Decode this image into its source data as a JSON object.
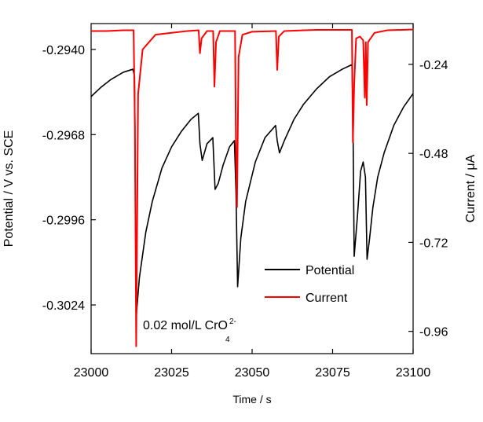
{
  "chart_data": {
    "type": "line",
    "xlabel": "Time / s",
    "ylabel_left": "Potential / V vs. SCE",
    "ylabel_right": "Current / μA",
    "xlim": [
      23000,
      23100
    ],
    "ylim_left": [
      -0.304,
      -0.29315
    ],
    "ylim_right": [
      -1.02,
      -0.13
    ],
    "x_ticks": [
      23000,
      23025,
      23050,
      23075,
      23100
    ],
    "x_tick_labels": [
      "23000",
      "23025",
      "23050",
      "23075",
      "23100"
    ],
    "y_left_ticks": [
      -0.294,
      -0.2968,
      -0.2996,
      -0.3024
    ],
    "y_left_tick_labels": [
      "-0.2940",
      "-0.2968",
      "-0.2996",
      "-0.3024"
    ],
    "y_right_ticks": [
      -0.24,
      -0.48,
      -0.72,
      -0.96
    ],
    "y_right_tick_labels": [
      "-0.24",
      "-0.48",
      "-0.72",
      "-0.96"
    ],
    "legend": {
      "placement": "bottom-right",
      "entries": [
        "Potential",
        "Current"
      ]
    },
    "annotation": {
      "text": "0.02 mol/L CrO",
      "superscript": "2-",
      "subscript": "4"
    },
    "series": [
      {
        "name": "Potential",
        "axis": "left",
        "color": "#000000",
        "points": [
          [
            23000,
            -0.29555
          ],
          [
            23003,
            -0.29525
          ],
          [
            23006,
            -0.295
          ],
          [
            23010,
            -0.29475
          ],
          [
            23013,
            -0.29465
          ],
          [
            23013.5,
            -0.2949
          ],
          [
            23014,
            -0.3028
          ],
          [
            23015,
            -0.3015
          ],
          [
            23017,
            -0.3
          ],
          [
            23019,
            -0.299
          ],
          [
            23022,
            -0.2979
          ],
          [
            23025,
            -0.2972
          ],
          [
            23028,
            -0.2967
          ],
          [
            23031,
            -0.2963
          ],
          [
            23033.3,
            -0.2961
          ],
          [
            23033.8,
            -0.2971
          ],
          [
            23034.5,
            -0.29765
          ],
          [
            23036,
            -0.2971
          ],
          [
            23037.8,
            -0.2969
          ],
          [
            23038.5,
            -0.2986
          ],
          [
            23039.5,
            -0.2984
          ],
          [
            23041,
            -0.2978
          ],
          [
            23043,
            -0.2972
          ],
          [
            23044.5,
            -0.297
          ],
          [
            23045,
            -0.2987
          ],
          [
            23045.5,
            -0.3018
          ],
          [
            23046.5,
            -0.3002
          ],
          [
            23048,
            -0.299
          ],
          [
            23051,
            -0.2977
          ],
          [
            23054,
            -0.2969
          ],
          [
            23057.3,
            -0.2965
          ],
          [
            23057.8,
            -0.297
          ],
          [
            23058.5,
            -0.2974
          ],
          [
            23060,
            -0.297
          ],
          [
            23063,
            -0.2963
          ],
          [
            23066,
            -0.2958
          ],
          [
            23070,
            -0.2953
          ],
          [
            23074,
            -0.2949
          ],
          [
            23078,
            -0.29465
          ],
          [
            23081,
            -0.2945
          ],
          [
            23081.3,
            -0.296
          ],
          [
            23081.7,
            -0.3008
          ],
          [
            23082.7,
            -0.2995
          ],
          [
            23083.7,
            -0.298
          ],
          [
            23084.5,
            -0.2977
          ],
          [
            23085.2,
            -0.2982
          ],
          [
            23085.7,
            -0.3009
          ],
          [
            23086.5,
            -0.3002
          ],
          [
            23087.5,
            -0.2992
          ],
          [
            23089,
            -0.2982
          ],
          [
            23091,
            -0.2974
          ],
          [
            23094,
            -0.2965
          ],
          [
            23097,
            -0.2959
          ],
          [
            23100,
            -0.29545
          ]
        ]
      },
      {
        "name": "Current",
        "axis": "right",
        "color": "#ff0000",
        "points": [
          [
            23000,
            -0.15
          ],
          [
            23005,
            -0.15
          ],
          [
            23010,
            -0.148
          ],
          [
            23013.2,
            -0.148
          ],
          [
            23013.6,
            -0.4
          ],
          [
            23014,
            -1.0
          ],
          [
            23014.6,
            -0.32
          ],
          [
            23016,
            -0.2
          ],
          [
            23020,
            -0.16
          ],
          [
            23025,
            -0.155
          ],
          [
            23030,
            -0.15
          ],
          [
            23033.4,
            -0.148
          ],
          [
            23033.8,
            -0.21
          ],
          [
            23034.3,
            -0.17
          ],
          [
            23036,
            -0.15
          ],
          [
            23037.9,
            -0.15
          ],
          [
            23038.3,
            -0.3
          ],
          [
            23038.8,
            -0.18
          ],
          [
            23040,
            -0.15
          ],
          [
            23044.7,
            -0.15
          ],
          [
            23045.0,
            -0.48
          ],
          [
            23045.3,
            -0.625
          ],
          [
            23045.8,
            -0.22
          ],
          [
            23047,
            -0.16
          ],
          [
            23050,
            -0.152
          ],
          [
            23057.4,
            -0.15
          ],
          [
            23057.8,
            -0.255
          ],
          [
            23058.3,
            -0.165
          ],
          [
            23060,
            -0.15
          ],
          [
            23070,
            -0.147
          ],
          [
            23081.0,
            -0.147
          ],
          [
            23081.3,
            -0.45
          ],
          [
            23081.7,
            -0.295
          ],
          [
            23082.3,
            -0.17
          ],
          [
            23083.5,
            -0.165
          ],
          [
            23084.5,
            -0.175
          ],
          [
            23085.0,
            -0.33
          ],
          [
            23085.3,
            -0.18
          ],
          [
            23085.6,
            -0.35
          ],
          [
            23086.0,
            -0.18
          ],
          [
            23088,
            -0.155
          ],
          [
            23092,
            -0.148
          ],
          [
            23100,
            -0.146
          ]
        ]
      }
    ]
  }
}
